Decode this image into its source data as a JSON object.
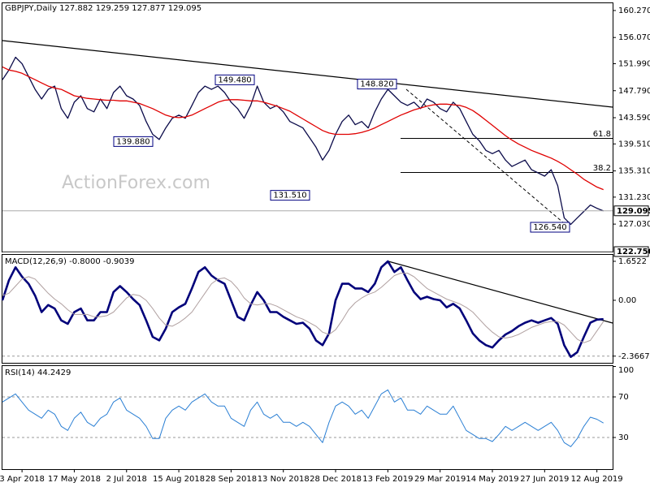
{
  "chart_data": [
    {
      "type": "line",
      "title": "GBPJPY,Daily 127.882 129.259 127.877 129.095",
      "watermark": "ActionForex.com",
      "series": [
        {
          "color": "#0b0b4a",
          "values": [
            149.5,
            151,
            153,
            152,
            150,
            148,
            146.5,
            148,
            148.5,
            145,
            143.5,
            146,
            147,
            145,
            144.5,
            146.5,
            145,
            147.5,
            148.5,
            147,
            146.5,
            145.5,
            143,
            141,
            140.2,
            142,
            143.5,
            144,
            143.5,
            145.5,
            147.5,
            148.5,
            148,
            148.5,
            147.5,
            146,
            145,
            143.5,
            145.5,
            148.5,
            146,
            145,
            145.5,
            144.5,
            143,
            142.5,
            142,
            140.5,
            139,
            137,
            138.5,
            141,
            143,
            144,
            142.5,
            143,
            142,
            144.5,
            146.5,
            148,
            147,
            146,
            145.5,
            146,
            145,
            146.5,
            146,
            145,
            144.5,
            146,
            145,
            143,
            141,
            140,
            138.5,
            138,
            138.5,
            137,
            136,
            136.5,
            137,
            135.5,
            135,
            134.5,
            135.5,
            133,
            128,
            127,
            128,
            129,
            130,
            129.5,
            129.095
          ]
        },
        {
          "color": "#e00000",
          "values": [
            151.5,
            151,
            150.8,
            150.5,
            150,
            149.5,
            149,
            148.5,
            148.2,
            148,
            147.5,
            147,
            146.8,
            146.6,
            146.5,
            146.4,
            146.3,
            146.3,
            146.2,
            146.2,
            146,
            145.8,
            145.4,
            145,
            144.5,
            144,
            143.7,
            143.6,
            143.7,
            144,
            144.5,
            145,
            145.5,
            146,
            146.3,
            146.4,
            146.4,
            146.3,
            146.2,
            146.2,
            146,
            145.7,
            145.4,
            145,
            144.6,
            144,
            143.4,
            142.8,
            142.2,
            141.6,
            141.2,
            141,
            141,
            141,
            141.1,
            141.3,
            141.6,
            142,
            142.5,
            143,
            143.5,
            144,
            144.4,
            144.8,
            145.1,
            145.4,
            145.6,
            145.7,
            145.7,
            145.6,
            145.5,
            145.2,
            144.7,
            144,
            143.2,
            142.4,
            141.6,
            140.8,
            140.1,
            139.5,
            139,
            138.5,
            138.1,
            137.7,
            137.3,
            136.8,
            136.2,
            135.5,
            134.8,
            134,
            133.4,
            132.8,
            132.4
          ]
        }
      ],
      "ylim": [
        122.75,
        161.4
      ],
      "yticks": [
        {
          "value": 160.27,
          "label": "160.270"
        },
        {
          "value": 156.07,
          "label": "156.070"
        },
        {
          "value": 151.99,
          "label": "151.990"
        },
        {
          "value": 147.79,
          "label": "147.790"
        },
        {
          "value": 143.59,
          "label": "143.590"
        },
        {
          "value": 139.51,
          "label": "139.510"
        },
        {
          "value": 135.31,
          "label": "135.310"
        },
        {
          "value": 131.23,
          "label": "131.230"
        },
        {
          "value": 127.03,
          "label": "127.030"
        }
      ],
      "boxed_ticks": [
        {
          "value": 129.095,
          "label": "129.095"
        },
        {
          "value": 122.75,
          "label": "122.750"
        }
      ],
      "annotations": [
        {
          "value": 149.48,
          "label": "149.480"
        },
        {
          "value": 139.88,
          "label": "139.880"
        },
        {
          "value": 131.51,
          "label": "131.510"
        },
        {
          "value": 148.82,
          "label": "148.820"
        },
        {
          "value": 126.54,
          "label": "126.540"
        }
      ],
      "fib_levels": [
        61.8,
        38.2
      ]
    },
    {
      "type": "line",
      "title": "MACD(12,26,9) -0.8000 -0.9039",
      "series": [
        {
          "color": "#00007a",
          "values": [
            0,
            0.85,
            1.4,
            1.0,
            0.7,
            0.2,
            -0.5,
            -0.2,
            -0.35,
            -0.85,
            -1.0,
            -0.5,
            -0.35,
            -0.85,
            -0.85,
            -0.5,
            -0.5,
            0.35,
            0.6,
            0.35,
            0.05,
            -0.2,
            -0.85,
            -1.55,
            -1.7,
            -1.2,
            -0.5,
            -0.3,
            -0.15,
            0.5,
            1.2,
            1.4,
            1.05,
            0.85,
            0.7,
            0,
            -0.7,
            -0.85,
            -0.2,
            0.35,
            0,
            -0.5,
            -0.5,
            -0.7,
            -0.85,
            -1.0,
            -0.95,
            -1.2,
            -1.7,
            -1.9,
            -1.4,
            0,
            0.7,
            0.7,
            0.5,
            0.5,
            0.35,
            0.7,
            1.4,
            1.65,
            1.2,
            1.4,
            0.85,
            0.35,
            0.05,
            0.15,
            0.05,
            0,
            -0.3,
            -0.15,
            -0.35,
            -0.85,
            -1.4,
            -1.7,
            -1.9,
            -2.0,
            -1.7,
            -1.45,
            -1.3,
            -1.1,
            -0.95,
            -0.85,
            -0.95,
            -0.85,
            -0.75,
            -1.0,
            -1.9,
            -2.4,
            -2.2,
            -1.55,
            -0.95,
            -0.82,
            -0.8
          ]
        },
        {
          "color": "#b0a0a0",
          "values": [
            0.2,
            0.3,
            0.6,
            0.9,
            1.0,
            0.9,
            0.6,
            0.3,
            0.05,
            -0.15,
            -0.4,
            -0.6,
            -0.6,
            -0.6,
            -0.7,
            -0.7,
            -0.65,
            -0.5,
            -0.2,
            0.1,
            0.25,
            0.2,
            0,
            -0.35,
            -0.75,
            -1.05,
            -1.1,
            -0.95,
            -0.75,
            -0.5,
            -0.1,
            0.3,
            0.7,
            0.9,
            0.95,
            0.8,
            0.5,
            0.1,
            -0.15,
            -0.2,
            -0.15,
            -0.15,
            -0.25,
            -0.4,
            -0.55,
            -0.7,
            -0.8,
            -0.95,
            -1.1,
            -1.35,
            -1.45,
            -1.25,
            -0.85,
            -0.4,
            -0.1,
            0.1,
            0.25,
            0.35,
            0.55,
            0.8,
            1.05,
            1.15,
            1.15,
            1.0,
            0.75,
            0.5,
            0.35,
            0.2,
            0.05,
            -0.05,
            -0.15,
            -0.3,
            -0.5,
            -0.8,
            -1.1,
            -1.35,
            -1.55,
            -1.6,
            -1.55,
            -1.45,
            -1.3,
            -1.15,
            -1.05,
            -0.95,
            -0.9,
            -0.9,
            -1.05,
            -1.35,
            -1.65,
            -1.8,
            -1.7,
            -1.3,
            -0.9039
          ]
        }
      ],
      "ylim": [
        -2.65,
        1.96
      ],
      "yticks": [
        1.6522,
        {
          "value": 0,
          "label": "0.00"
        },
        -2.3667
      ]
    },
    {
      "type": "line",
      "title": "RSI(14) 44.2429",
      "series": [
        {
          "color": "#2a7fd4",
          "values": [
            65,
            69,
            73,
            65,
            57,
            53,
            49,
            57,
            53,
            41,
            37,
            49,
            55,
            45,
            41,
            49,
            53,
            65,
            69,
            57,
            53,
            49,
            41,
            29,
            29,
            49,
            57,
            61,
            57,
            65,
            69,
            73,
            65,
            61,
            61,
            49,
            45,
            41,
            57,
            65,
            53,
            49,
            53,
            45,
            45,
            41,
            45,
            41,
            33,
            25,
            45,
            61,
            65,
            61,
            53,
            57,
            49,
            61,
            73,
            77,
            65,
            69,
            57,
            57,
            53,
            61,
            57,
            53,
            53,
            61,
            49,
            37,
            33,
            29,
            29,
            26,
            33,
            41,
            37,
            41,
            45,
            41,
            37,
            41,
            45,
            37,
            25,
            21,
            29,
            41,
            50,
            48,
            44.2429
          ]
        }
      ],
      "ylim": [
        -1.2,
        101.2
      ],
      "yticks": [
        100,
        70,
        30
      ],
      "categories": [
        null,
        null,
        null,
        "3 Apr 2018",
        null,
        null,
        null,
        null,
        null,
        null,
        null,
        "17 May 2018",
        null,
        null,
        null,
        null,
        null,
        null,
        null,
        "2 Jul 2018",
        null,
        null,
        null,
        null,
        null,
        null,
        null,
        "15 Aug 2018",
        null,
        null,
        null,
        null,
        null,
        null,
        null,
        "28 Sep 2018",
        null,
        null,
        null,
        null,
        null,
        null,
        null,
        "13 Nov 2018",
        null,
        null,
        null,
        null,
        null,
        null,
        null,
        "28 Dec 2018",
        null,
        null,
        null,
        null,
        null,
        null,
        null,
        "13 Feb 2019",
        null,
        null,
        null,
        null,
        null,
        null,
        null,
        "29 Mar 2019",
        null,
        null,
        null,
        null,
        null,
        null,
        null,
        "14 May 2019",
        null,
        null,
        null,
        null,
        null,
        null,
        null,
        "27 Jun 2019",
        null,
        null,
        null,
        null,
        null,
        null,
        null,
        "12 Aug 2019",
        null
      ]
    }
  ]
}
